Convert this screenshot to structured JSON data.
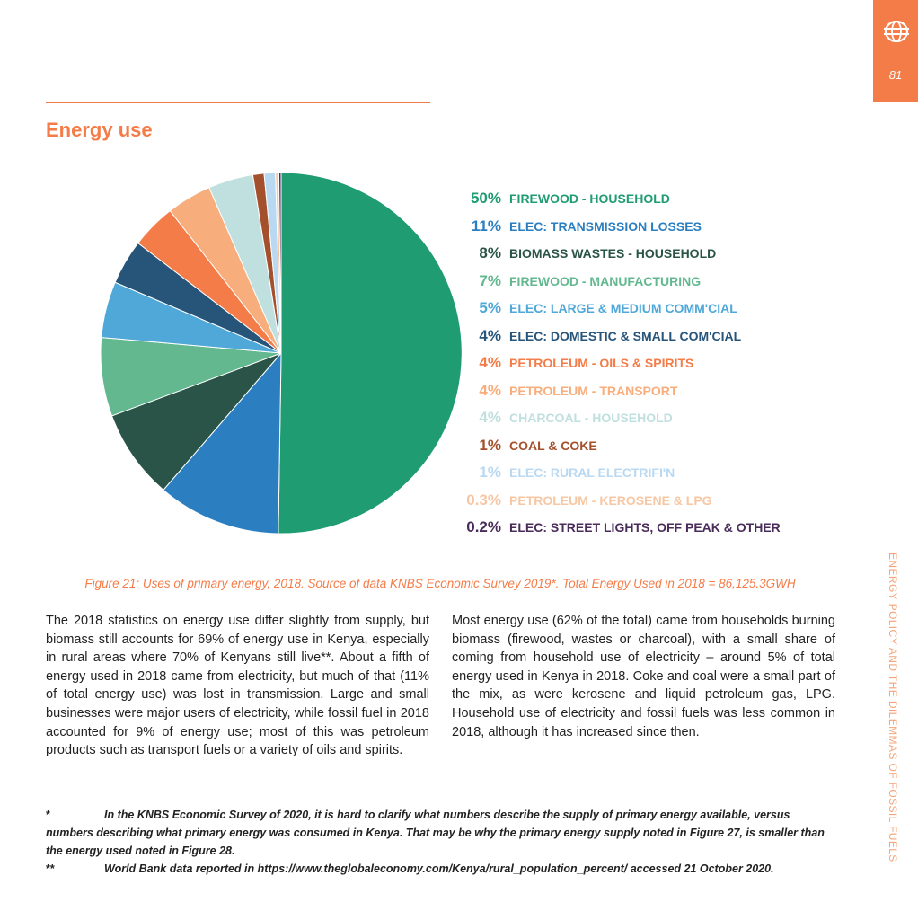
{
  "page": {
    "number": "81",
    "running_title": "ENERGY POLICY AND THE DILEMMAS OF FOSSIL FUELS",
    "heading": "Energy use"
  },
  "chart_data": {
    "type": "pie",
    "title": "",
    "legend_position": "right",
    "slices": [
      {
        "pct_label": "50%",
        "label": "FIREWOOD - HOUSEHOLD",
        "value": 50,
        "color": "#1f9c72"
      },
      {
        "pct_label": "11%",
        "label": "ELEC: TRANSMISSION LOSSES",
        "value": 11,
        "color": "#2b7fc1"
      },
      {
        "pct_label": "8%",
        "label": "BIOMASS WASTES - HOUSEHOLD",
        "value": 8,
        "color": "#2a5447"
      },
      {
        "pct_label": "7%",
        "label": "FIREWOOD - MANUFACTURING",
        "value": 7,
        "color": "#63b890"
      },
      {
        "pct_label": "5%",
        "label": "ELEC: LARGE & MEDIUM COMM'CIAL",
        "value": 5,
        "color": "#4fa8d8"
      },
      {
        "pct_label": "4%",
        "label": "ELEC: DOMESTIC & SMALL COM'CIAL",
        "value": 4,
        "color": "#27557a"
      },
      {
        "pct_label": "4%",
        "label": "PETROLEUM - OILS & SPIRITS",
        "value": 4,
        "color": "#f47c48"
      },
      {
        "pct_label": "4%",
        "label": "PETROLEUM - TRANSPORT",
        "value": 4,
        "color": "#f8ad7c"
      },
      {
        "pct_label": "4%",
        "label": "CHARCOAL - HOUSEHOLD",
        "value": 4,
        "color": "#bfe0df"
      },
      {
        "pct_label": "1%",
        "label": "COAL & COKE",
        "value": 1,
        "color": "#a4502c"
      },
      {
        "pct_label": "1%",
        "label": "ELEC: RURAL ELECTRIFI'N",
        "value": 1,
        "color": "#b9d9f2"
      },
      {
        "pct_label": "0.3%",
        "label": "PETROLEUM - KEROSENE & LPG",
        "value": 0.3,
        "color": "#f7c7a3"
      },
      {
        "pct_label": "0.2%",
        "label": "ELEC: STREET LIGHTS, OFF PEAK & OTHER",
        "value": 0.2,
        "color": "#4a2c5a"
      }
    ]
  },
  "caption": "Figure 21: Uses of primary energy, 2018. Source of data KNBS Economic Survey 2019*. Total Energy Used in 2018 = 86,125.3GWH",
  "body": {
    "left": "The 2018 statistics on energy use differ slightly from supply, but biomass still accounts for 69% of energy use in Kenya, especially in rural areas where 70% of Kenyans still live**. About a fifth of energy used in 2018 came from electricity, but much of that (11% of total energy use) was lost in transmission. Large and small businesses were major users of electricity, while fossil fuel in 2018 accounted for 9% of energy use; most of this was petroleum products such as transport fuels or a variety of oils and spirits.",
    "right": "Most energy use (62% of the total) came from households burning biomass (firewood, wastes or charcoal), with a small share of coming from household use of electricity – around 5% of total energy used in Kenya in 2018.  Coke and coal were a small part of the mix, as were kerosene and liquid petroleum gas, LPG.  Household use of electricity and fossil fuels was less common in 2018, although it has increased since then."
  },
  "footnotes": [
    {
      "mark": "*",
      "text": "In the KNBS Economic Survey of 2020, it is hard to clarify what numbers describe the supply of primary energy available, versus numbers describing what primary energy was consumed in Kenya.  That may be why the primary energy supply noted in Figure 27, is smaller than the energy used noted in Figure 28."
    },
    {
      "mark": "**",
      "text": "World Bank data reported in https://www.theglobaleconomy.com/Kenya/rural_population_percent/  accessed 21 October 2020."
    }
  ]
}
